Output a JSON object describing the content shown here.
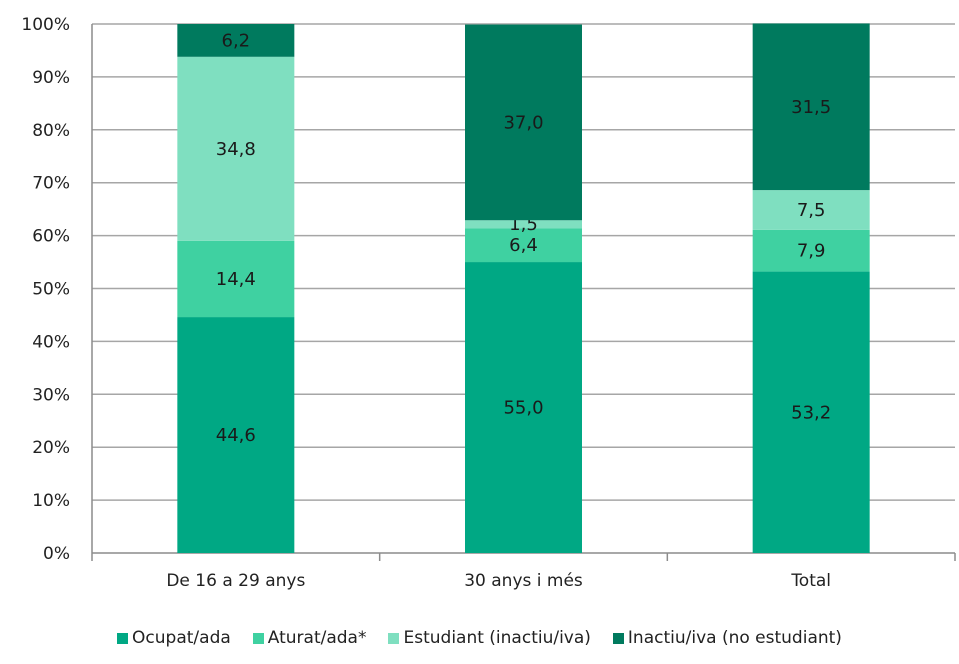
{
  "chart_data": {
    "type": "bar",
    "stacked": true,
    "categories": [
      "De 16 a 29 anys",
      "30 anys i més",
      "Total"
    ],
    "series": [
      {
        "name": "Ocupat/ada",
        "values": [
          44.6,
          55.0,
          53.2
        ],
        "labels": [
          "44,6",
          "55,0",
          "53,2"
        ],
        "color": "#00a884"
      },
      {
        "name": "Aturat/ada*",
        "values": [
          14.4,
          6.4,
          7.9
        ],
        "labels": [
          "14,4",
          "6,4",
          "7,9"
        ],
        "color": "#3fd1a1"
      },
      {
        "name": "Estudiant (inactiu/iva)",
        "values": [
          34.8,
          1.5,
          7.5
        ],
        "labels": [
          "34,8",
          "1,5",
          "7,5"
        ],
        "color": "#7fdfc0"
      },
      {
        "name": "Inactiu/iva (no estudiant)",
        "values": [
          6.2,
          37.0,
          31.5
        ],
        "labels": [
          "6,2",
          "37,0",
          "31,5"
        ],
        "color": "#007a5e"
      }
    ],
    "yticks": [
      "0%",
      "10%",
      "20%",
      "30%",
      "40%",
      "50%",
      "60%",
      "70%",
      "80%",
      "90%",
      "100%"
    ],
    "ylim": [
      0,
      100
    ],
    "grid": true,
    "legend_position": "bottom"
  }
}
